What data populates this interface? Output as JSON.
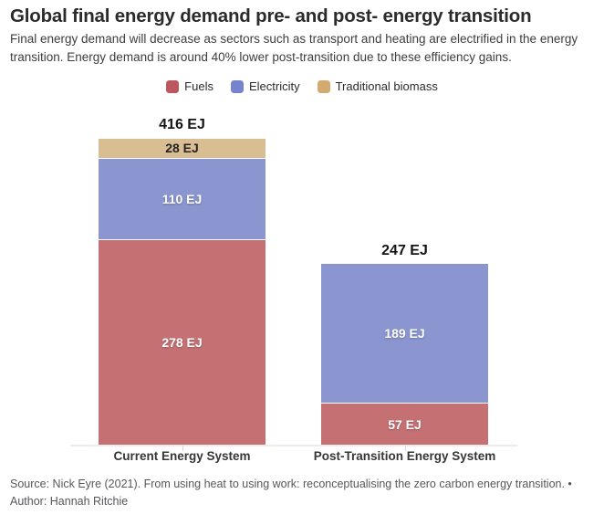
{
  "header": {
    "title": "Global final energy demand pre- and post- energy transition",
    "subtitle": "Final energy demand will decrease as sectors such as transport and heating are electrified in the energy transition. Energy demand is around 40% lower post-transition due to these efficiency gains."
  },
  "legend": {
    "items": [
      {
        "label": "Fuels",
        "swatch_color": "#bb575e",
        "bar_color": "#c57174",
        "label_color": "light"
      },
      {
        "label": "Electricity",
        "swatch_color": "#7584cc",
        "bar_color": "#8b96d1",
        "label_color": "light"
      },
      {
        "label": "Traditional biomass",
        "swatch_color": "#d2aa72",
        "bar_color": "#dabe93",
        "label_color": "dark"
      }
    ]
  },
  "chart_data": {
    "type": "bar",
    "stacked": true,
    "unit": "EJ",
    "title": "Global final energy demand pre- and post- energy transition",
    "categories": [
      "Current Energy System",
      "Post-Transition Energy System"
    ],
    "series": [
      {
        "name": "Fuels",
        "values": [
          278,
          57
        ]
      },
      {
        "name": "Electricity",
        "values": [
          110,
          189
        ]
      },
      {
        "name": "Traditional biomass",
        "values": [
          28,
          0
        ]
      }
    ],
    "totals": [
      416,
      247
    ],
    "value_label_suffix": " EJ",
    "legend_position": "top",
    "grid": false,
    "y_axis_visible": false
  },
  "footer": {
    "source_line1": "Source: Nick Eyre (2021). From using heat to using work: reconceptualising the zero carbon energy transition. •",
    "source_line2": "Author: Hannah Ritchie"
  }
}
